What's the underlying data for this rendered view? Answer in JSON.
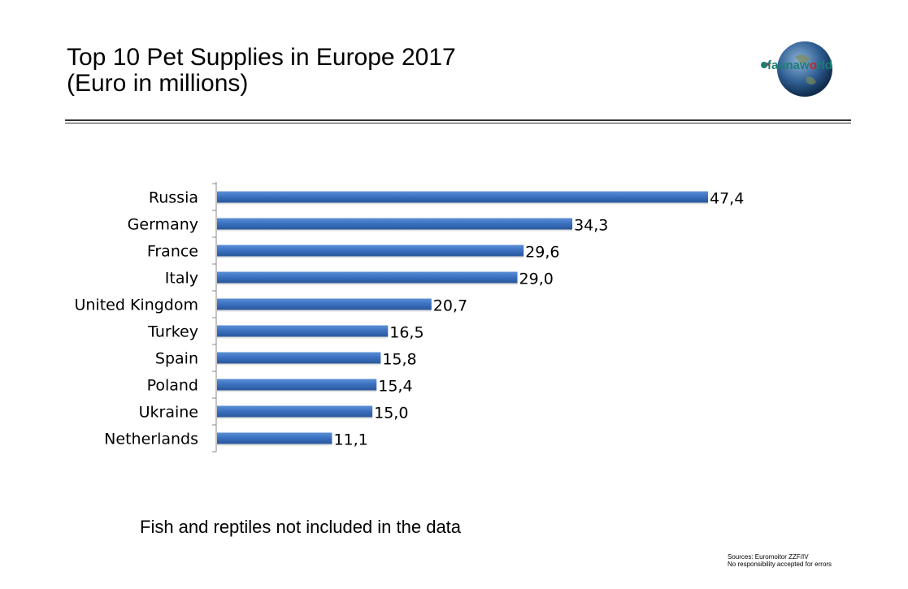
{
  "header": {
    "title_line1": "Top 10 Pet Supplies in Europe 2017",
    "title_line2": "(Euro in millions)",
    "logo_text": "faunaworld"
  },
  "chart_data": {
    "type": "bar",
    "orientation": "horizontal",
    "categories": [
      "Russia",
      "Germany",
      "France",
      "Italy",
      "United Kingdom",
      "Turkey",
      "Spain",
      "Poland",
      "Ukraine",
      "Netherlands"
    ],
    "values": [
      47.4,
      34.3,
      29.6,
      29.0,
      20.7,
      16.5,
      15.8,
      15.4,
      15.0,
      11.1
    ],
    "data_labels": [
      "47,4",
      "34,3",
      "29,6",
      "29,0",
      "20,7",
      "16,5",
      "15,8",
      "15,4",
      "15,0",
      "11,1"
    ],
    "bar_color": "#3a6fbf",
    "xlim": [
      0,
      47.4
    ],
    "grid": false,
    "legend": "none"
  },
  "footer": {
    "note": "Fish and reptiles not included in the data",
    "sources": "Sources: Euromoitor ZZF/IV",
    "disclaimer": "No responsibility accepted for errors"
  }
}
